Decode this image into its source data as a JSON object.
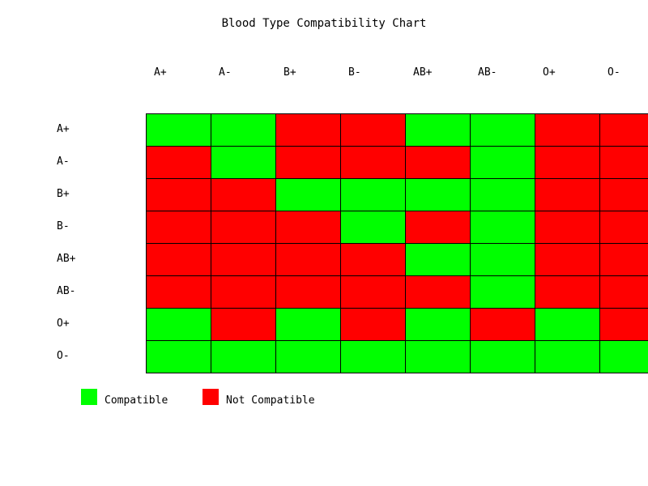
{
  "chart_data": {
    "type": "heatmap",
    "title": "Blood Type Compatibility Chart",
    "columns": [
      "A+",
      "A-",
      "B+",
      "B-",
      "AB+",
      "AB-",
      "O+",
      "O-"
    ],
    "rows": [
      "A+",
      "A-",
      "B+",
      "B-",
      "AB+",
      "AB-",
      "O+",
      "O-"
    ],
    "values": [
      [
        1,
        1,
        0,
        0,
        1,
        1,
        0,
        0
      ],
      [
        0,
        1,
        0,
        0,
        0,
        1,
        0,
        0
      ],
      [
        0,
        0,
        1,
        1,
        1,
        1,
        0,
        0
      ],
      [
        0,
        0,
        0,
        1,
        0,
        1,
        0,
        0
      ],
      [
        0,
        0,
        0,
        0,
        1,
        1,
        0,
        0
      ],
      [
        0,
        0,
        0,
        0,
        0,
        1,
        0,
        0
      ],
      [
        1,
        0,
        1,
        0,
        1,
        0,
        1,
        0
      ],
      [
        1,
        1,
        1,
        1,
        1,
        1,
        1,
        1
      ]
    ],
    "legend": [
      {
        "label": "Compatible",
        "value": 1,
        "color": "#00ff00"
      },
      {
        "label": "Not Compatible",
        "value": 0,
        "color": "#ff0000"
      }
    ],
    "legend_position": "bottom-left",
    "grid": true
  }
}
